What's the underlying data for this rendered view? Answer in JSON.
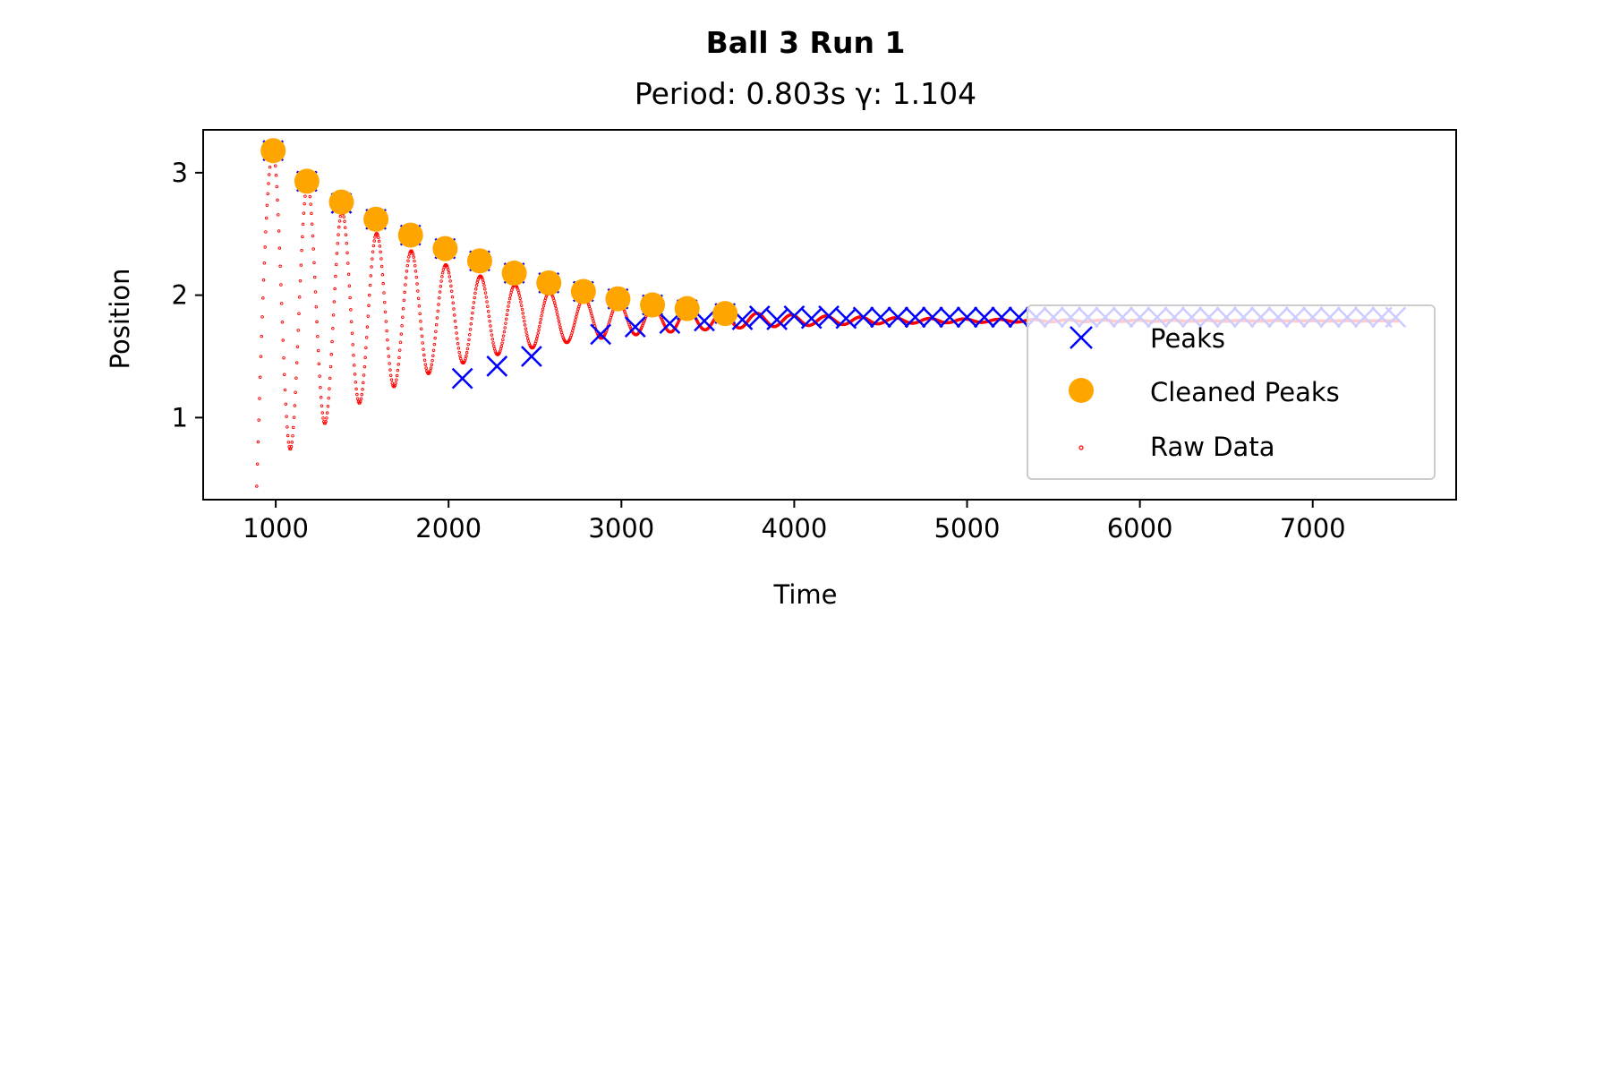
{
  "chart_data": {
    "type": "scatter",
    "title": "Ball 3 Run 1",
    "subtitle": "Period: 0.803s γ: 1.104",
    "xlabel": "Time",
    "ylabel": "Position",
    "xlim": [
      580,
      7830
    ],
    "ylim": [
      0.33,
      3.35
    ],
    "xticks": [
      1000,
      2000,
      3000,
      4000,
      5000,
      6000,
      7000
    ],
    "yticks": [
      1,
      2,
      3
    ],
    "grid": false,
    "legend_position": "center-right",
    "raw_data_model": {
      "t_start": 890,
      "t_end": 7500,
      "period_ms": 200,
      "equilibrium": 1.79,
      "first_peak_time": 985,
      "first_peak": 3.18,
      "first_trough": 0.62,
      "decay_ms": 900
    },
    "series": [
      {
        "name": "Peaks",
        "marker": "x",
        "color": "#0000ff",
        "points": [
          [
            985,
            3.18
          ],
          [
            1180,
            2.93
          ],
          [
            1380,
            2.75
          ],
          [
            1580,
            2.62
          ],
          [
            1780,
            2.49
          ],
          [
            1980,
            2.38
          ],
          [
            2080,
            1.32
          ],
          [
            2180,
            2.28
          ],
          [
            2280,
            1.42
          ],
          [
            2380,
            2.18
          ],
          [
            2480,
            1.5
          ],
          [
            2580,
            2.1
          ],
          [
            2780,
            2.03
          ],
          [
            2880,
            1.68
          ],
          [
            2980,
            1.97
          ],
          [
            3080,
            1.74
          ],
          [
            3180,
            1.92
          ],
          [
            3280,
            1.77
          ],
          [
            3380,
            1.88
          ],
          [
            3480,
            1.79
          ],
          [
            3600,
            1.85
          ],
          [
            3700,
            1.8
          ],
          [
            3800,
            1.83
          ],
          [
            3900,
            1.8
          ],
          [
            4000,
            1.83
          ],
          [
            4100,
            1.81
          ],
          [
            4200,
            1.83
          ],
          [
            4300,
            1.81
          ],
          [
            4400,
            1.82
          ],
          [
            4500,
            1.82
          ],
          [
            4600,
            1.82
          ],
          [
            4700,
            1.82
          ],
          [
            4800,
            1.82
          ],
          [
            4900,
            1.82
          ],
          [
            5000,
            1.82
          ],
          [
            5100,
            1.82
          ],
          [
            5200,
            1.82
          ],
          [
            5300,
            1.82
          ],
          [
            5400,
            1.82
          ],
          [
            5500,
            1.82
          ],
          [
            5600,
            1.82
          ],
          [
            5700,
            1.82
          ],
          [
            5800,
            1.82
          ],
          [
            5900,
            1.82
          ],
          [
            6000,
            1.82
          ],
          [
            6100,
            1.82
          ],
          [
            6200,
            1.82
          ],
          [
            6300,
            1.82
          ],
          [
            6400,
            1.82
          ],
          [
            6500,
            1.82
          ],
          [
            6600,
            1.82
          ],
          [
            6700,
            1.82
          ],
          [
            6800,
            1.82
          ],
          [
            6900,
            1.82
          ],
          [
            7000,
            1.82
          ],
          [
            7100,
            1.82
          ],
          [
            7200,
            1.82
          ],
          [
            7300,
            1.82
          ],
          [
            7400,
            1.82
          ],
          [
            7480,
            1.82
          ]
        ]
      },
      {
        "name": "Cleaned Peaks",
        "marker": "o",
        "color": "#ffa500",
        "points": [
          [
            985,
            3.18
          ],
          [
            1180,
            2.93
          ],
          [
            1380,
            2.76
          ],
          [
            1580,
            2.62
          ],
          [
            1780,
            2.49
          ],
          [
            1980,
            2.38
          ],
          [
            2180,
            2.28
          ],
          [
            2380,
            2.18
          ],
          [
            2580,
            2.1
          ],
          [
            2780,
            2.03
          ],
          [
            2980,
            1.97
          ],
          [
            3180,
            1.92
          ],
          [
            3380,
            1.89
          ],
          [
            3600,
            1.85
          ]
        ]
      },
      {
        "name": "Raw Data",
        "marker": ".",
        "color": "#ff0000"
      }
    ]
  }
}
